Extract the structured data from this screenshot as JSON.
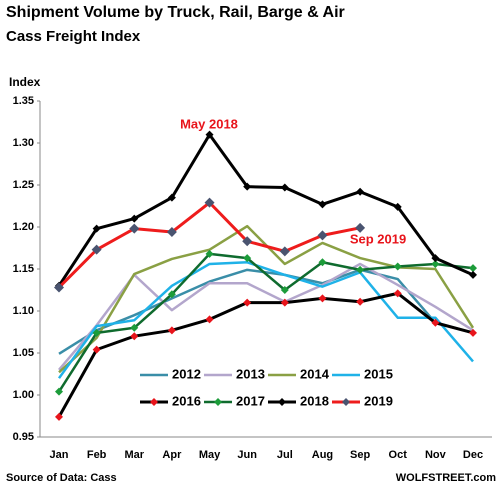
{
  "chart_data": {
    "type": "line",
    "title": "Shipment Volume by Truck, Rail, Barge & Air",
    "subtitle": "Cass Freight Index",
    "y_label": "Index",
    "annotations": [
      "May 2018",
      "Sep 2019"
    ],
    "source": "Source of Data: Cass",
    "credit": "WOLFSTREET.com",
    "categories": [
      "Jan",
      "Feb",
      "Mar",
      "Apr",
      "May",
      "Jun",
      "Jul",
      "Aug",
      "Sep",
      "Oct",
      "Nov",
      "Dec"
    ],
    "ylim": [
      0.95,
      1.35
    ],
    "yticks": [
      {
        "value": 0.95,
        "label": "0.95"
      },
      {
        "value": 1.0,
        "label": "1.00"
      },
      {
        "value": 1.05,
        "label": "1.05"
      },
      {
        "value": 1.1,
        "label": "1.10"
      },
      {
        "value": 1.15,
        "label": "1.15"
      },
      {
        "value": 1.2,
        "label": "1.20"
      },
      {
        "value": 1.25,
        "label": "1.25"
      },
      {
        "value": 1.3,
        "label": "1.30"
      },
      {
        "value": 1.35,
        "label": "1.35"
      }
    ],
    "grid": false,
    "series": [
      {
        "name": "2012",
        "color": "#3a8ea8",
        "values": [
          1.049,
          1.077,
          1.095,
          1.115,
          1.135,
          1.149,
          1.143,
          1.133,
          1.149,
          1.138,
          1.086,
          1.074
        ]
      },
      {
        "name": "2013",
        "color": "#b3a6cc",
        "values": [
          1.03,
          1.083,
          1.143,
          1.101,
          1.133,
          1.133,
          1.111,
          1.131,
          1.156,
          1.131,
          1.105,
          1.077
        ]
      },
      {
        "name": "2014",
        "color": "#8aa044",
        "values": [
          1.027,
          1.068,
          1.144,
          1.162,
          1.173,
          1.201,
          1.156,
          1.181,
          1.163,
          1.152,
          1.15,
          1.08
        ]
      },
      {
        "name": "2015",
        "color": "#1fb2e8",
        "values": [
          1.02,
          1.082,
          1.089,
          1.13,
          1.156,
          1.158,
          1.143,
          1.129,
          1.146,
          1.092,
          1.092,
          1.04
        ]
      },
      {
        "name": "2016",
        "color": "#000000",
        "marker_color": "#e8141b",
        "values": [
          0.974,
          1.054,
          1.07,
          1.077,
          1.09,
          1.11,
          1.11,
          1.115,
          1.111,
          1.121,
          1.086,
          1.074
        ]
      },
      {
        "name": "2017",
        "color": "#0f6b2e",
        "marker_color": "#1c9c3a",
        "values": [
          1.004,
          1.074,
          1.08,
          1.12,
          1.168,
          1.163,
          1.125,
          1.158,
          1.149,
          1.153,
          1.156,
          1.151
        ]
      },
      {
        "name": "2018",
        "color": "#000000",
        "marker_color": "#000000",
        "values": [
          1.13,
          1.198,
          1.21,
          1.235,
          1.31,
          1.248,
          1.247,
          1.227,
          1.242,
          1.224,
          1.163,
          1.143
        ]
      },
      {
        "name": "2019",
        "color": "#ee1c1c",
        "marker_color": "#4a5470",
        "values": [
          1.128,
          1.173,
          1.198,
          1.194,
          1.229,
          1.183,
          1.171,
          1.19,
          1.199,
          null,
          null,
          null
        ]
      }
    ]
  }
}
